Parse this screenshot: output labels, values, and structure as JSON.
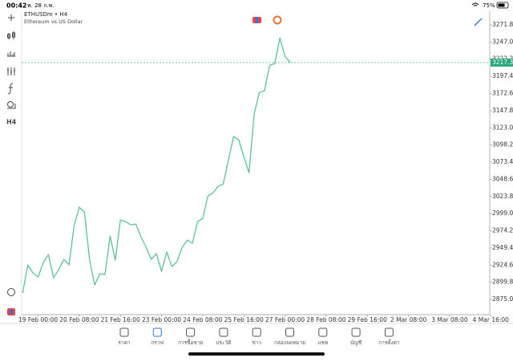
{
  "status_bar": {
    "time": "00:42",
    "date": "พ. 28 ก.พ.",
    "battery": "75%"
  },
  "symbol": {
    "title": "ETHUSDm • H4",
    "description": "Ethereum vs US Dollar"
  },
  "left_toolbar": {
    "timeframe": "H4"
  },
  "chart_data": {
    "type": "line",
    "color": "#5fbf9a",
    "values": [
      2884.3,
      2924.8,
      2913.2,
      2907.4,
      2928.3,
      2939.9,
      2906.3,
      2917.9,
      2932.9,
      2924.8,
      2981.6,
      3008.3,
      3001.3,
      2932.9,
      2895.9,
      2912.1,
      2910.9,
      2966.6,
      2931.8,
      2989.7,
      2987.4,
      2982.8,
      2983.9,
      2965.4,
      2950.3,
      2932.9,
      2941.1,
      2915.6,
      2943.4,
      2922.5,
      2929.5,
      2950.3,
      2960.8,
      2956.1,
      2987.4,
      2992.0,
      3024.5,
      3029.1,
      3038.4,
      3041.9,
      3076.6,
      3110.3,
      3105.6,
      3081.3,
      3058.1,
      3142.7,
      3174.0,
      3176.3,
      3213.4,
      3215.7,
      3252.8,
      3226.1,
      3217.32
    ],
    "current_price": 3217.32,
    "xlim": [
      -0.2,
      90.8
    ],
    "ylim": [
      2853,
      3291.5
    ],
    "xticks": [
      {
        "value": 3,
        "label": "19 Feb 00:00"
      },
      {
        "value": 11,
        "label": "20 Feb 08:00"
      },
      {
        "value": 19,
        "label": "21 Feb 16:00"
      },
      {
        "value": 27,
        "label": "23 Feb 00:00"
      },
      {
        "value": 35,
        "label": "24 Feb 08:00"
      },
      {
        "value": 43,
        "label": "25 Feb 16:00"
      },
      {
        "value": 51,
        "label": "27 Feb 00:00"
      },
      {
        "value": 59,
        "label": "28 Feb 08:00"
      },
      {
        "value": 67,
        "label": "29 Feb 16:00"
      },
      {
        "value": 75,
        "label": "2 Mar 08:00"
      },
      {
        "value": 83,
        "label": "3 Mar 08:00"
      },
      {
        "value": 91,
        "label": "4 Mar 16:00"
      }
    ],
    "yticks": [
      {
        "value": 2875,
        "label": "2875.00"
      },
      {
        "value": 2899.8,
        "label": "2899.80"
      },
      {
        "value": 2924.6,
        "label": "2924.60"
      },
      {
        "value": 2949.4,
        "label": "2949.40"
      },
      {
        "value": 2974.2,
        "label": "2974.20"
      },
      {
        "value": 2999,
        "label": "2999.00"
      },
      {
        "value": 3023.8,
        "label": "3023.80"
      },
      {
        "value": 3048.6,
        "label": "3048.60"
      },
      {
        "value": 3073.4,
        "label": "3073.40"
      },
      {
        "value": 3098.2,
        "label": "3098.20"
      },
      {
        "value": 3123,
        "label": "3123.00"
      },
      {
        "value": 3147.8,
        "label": "3147.80"
      },
      {
        "value": 3172.6,
        "label": "3172.60"
      },
      {
        "value": 3197.4,
        "label": "3197.40"
      },
      {
        "value": 3222.2,
        "label": "3222.20"
      },
      {
        "value": 3247,
        "label": "3247.00"
      },
      {
        "value": 3271.8,
        "label": "3271.80"
      }
    ]
  },
  "tab_bar": {
    "tabs": [
      "ราคา",
      "กราฟ",
      "การซื้อขาย",
      "ประวัติ",
      "ข่าว",
      "กล่องจดหมาย",
      "แชท",
      "บัญชี",
      "การตั้งค่า"
    ],
    "active": "กราฟ"
  }
}
